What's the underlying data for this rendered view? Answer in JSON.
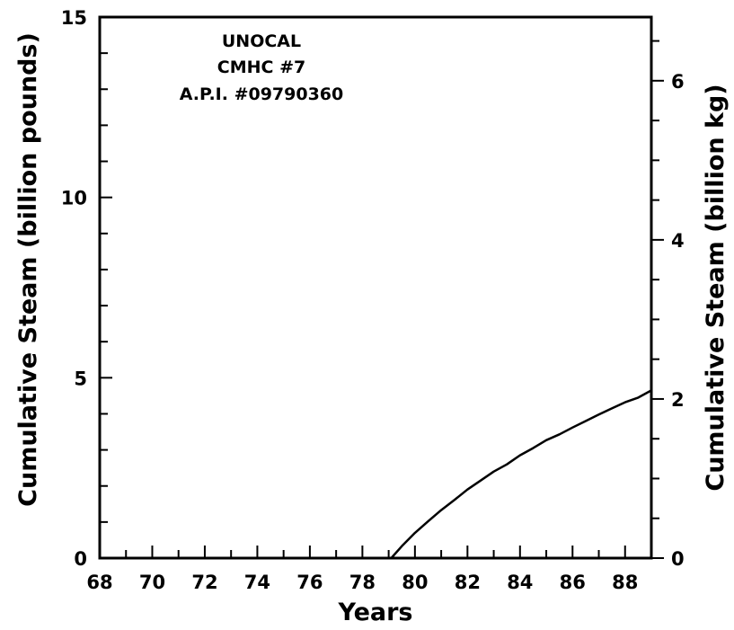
{
  "chart_data": {
    "type": "line",
    "title": "",
    "xlabel": "Years",
    "ylabel": "Cumulative Steam (billion pounds)",
    "y2label": "Cumulative Steam (billion kg)",
    "xlim": [
      68,
      89
    ],
    "ylim": [
      0,
      15
    ],
    "y2lim": [
      0,
      6.8
    ],
    "x_ticks": [
      68,
      70,
      72,
      74,
      76,
      78,
      80,
      82,
      84,
      86,
      88
    ],
    "x_minor_step": 1,
    "y_ticks": [
      0,
      5,
      10,
      15
    ],
    "y_minor_step": 1,
    "y2_ticks": [
      0,
      2,
      4,
      6
    ],
    "y2_minor_step": 0.5,
    "grid": false,
    "annotations": [
      "UNOCAL",
      "CMHC #7",
      "A.P.I. #09790360"
    ],
    "series": [
      {
        "x": [
          79.1,
          79.5,
          80,
          80.5,
          81,
          81.5,
          82,
          82.5,
          83,
          83.5,
          84,
          84.5,
          85,
          85.5,
          86,
          86.5,
          87,
          87.5,
          88,
          88.5,
          89
        ],
        "y": [
          0,
          0.33,
          0.7,
          1.02,
          1.33,
          1.61,
          1.9,
          2.15,
          2.4,
          2.6,
          2.85,
          3.05,
          3.27,
          3.43,
          3.62,
          3.8,
          3.98,
          4.15,
          4.32,
          4.45,
          4.65
        ]
      }
    ]
  }
}
